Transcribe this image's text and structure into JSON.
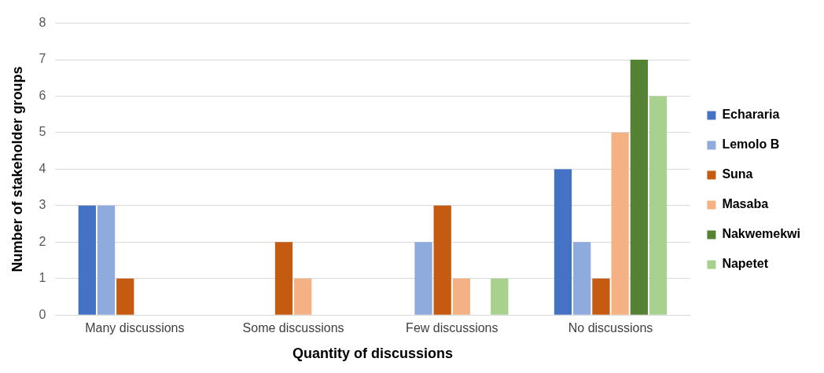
{
  "chart_data": {
    "type": "bar",
    "xlabel": "Quantity of discussions",
    "ylabel": "Number of stakeholder groups",
    "categories": [
      "Many discussions",
      "Some discussions",
      "Few discussions",
      "No discussions"
    ],
    "series": [
      {
        "name": "Echararia",
        "color": "#4472c4",
        "values": [
          3,
          0,
          0,
          4
        ]
      },
      {
        "name": "Lemolo B",
        "color": "#8faadc",
        "values": [
          3,
          0,
          2,
          2
        ]
      },
      {
        "name": "Suna",
        "color": "#c55a11",
        "values": [
          1,
          2,
          3,
          1
        ]
      },
      {
        "name": "Masaba",
        "color": "#f4b183",
        "values": [
          0,
          1,
          1,
          5
        ]
      },
      {
        "name": "Nakwemekwi",
        "color": "#548235",
        "values": [
          0,
          0,
          0,
          7
        ]
      },
      {
        "name": "Napetet",
        "color": "#a9d18e",
        "values": [
          0,
          0,
          1,
          6
        ]
      }
    ],
    "ylim": [
      0,
      8
    ],
    "yticks": [
      0,
      1,
      2,
      3,
      4,
      5,
      6,
      7,
      8
    ],
    "grid": "y",
    "legend": "right"
  }
}
